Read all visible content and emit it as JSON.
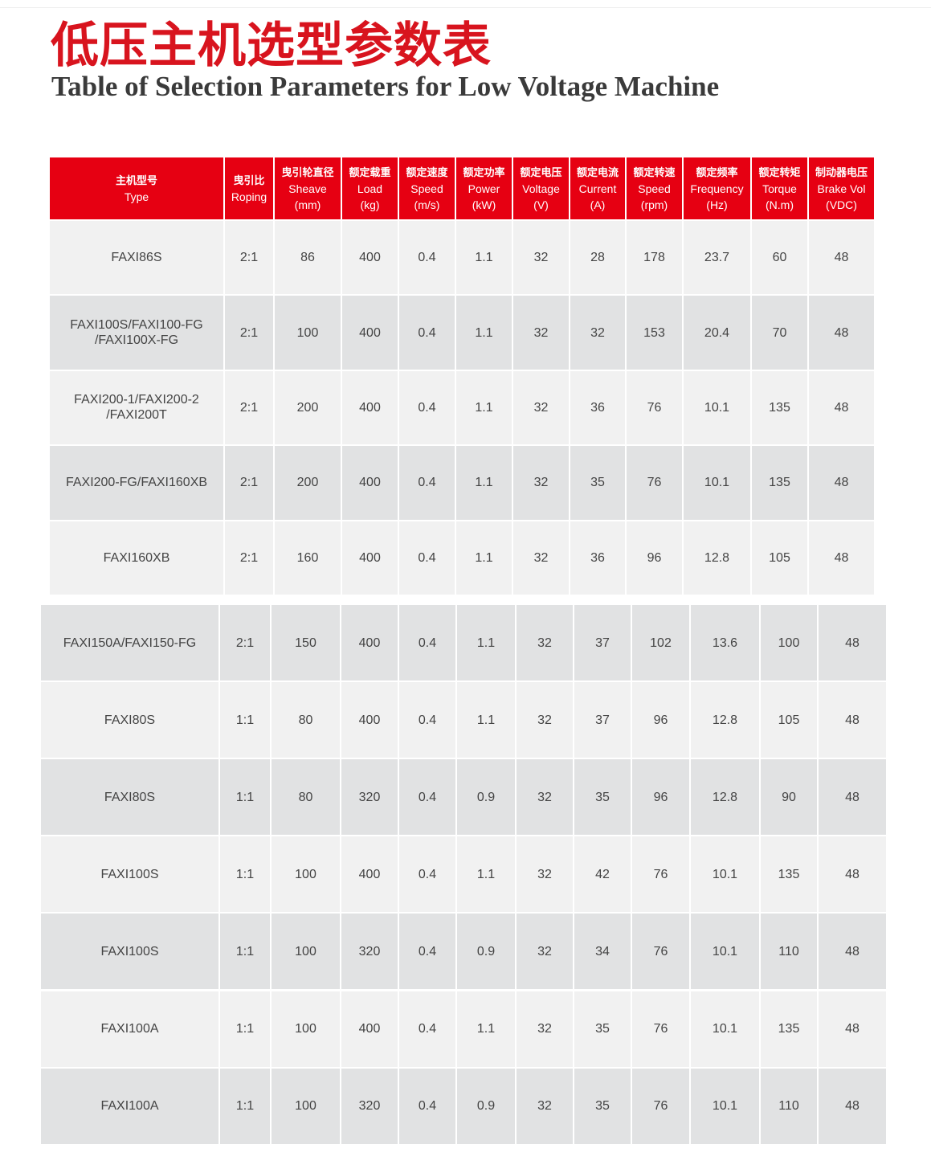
{
  "header": {
    "title": "低压主机选型参数表",
    "subtitle": "Table of Selection Parameters for Low Voltage Machine"
  },
  "table": {
    "columns": [
      {
        "zh": "主机型号",
        "en": "Type"
      },
      {
        "zh": "曳引比",
        "en": "Roping"
      },
      {
        "zh": "曳引轮直径",
        "en": "Sheave",
        "unit": "(mm)"
      },
      {
        "zh": "额定载重",
        "en": "Load",
        "unit": "(kg)"
      },
      {
        "zh": "额定速度",
        "en": "Speed",
        "unit": "(m/s)"
      },
      {
        "zh": "额定功率",
        "en": "Power",
        "unit": "(kW)"
      },
      {
        "zh": "额定电压",
        "en": "Voltage",
        "unit": "(V)"
      },
      {
        "zh": "额定电流",
        "en": "Current",
        "unit": "(A)"
      },
      {
        "zh": "额定转速",
        "en": "Speed",
        "unit": "(rpm)"
      },
      {
        "zh": "额定频率",
        "en": "Frequency",
        "unit": "(Hz)"
      },
      {
        "zh": "额定转矩",
        "en": "Torque",
        "unit": "(N.m)"
      },
      {
        "zh": "制动器电压",
        "en": "Brake Vol",
        "unit": "(VDC)"
      }
    ],
    "rows": [
      [
        "FAXI86S",
        "2:1",
        "86",
        "400",
        "0.4",
        "1.1",
        "32",
        "28",
        "178",
        "23.7",
        "60",
        "48"
      ],
      [
        "FAXI100S/FAXI100-FG /FAXI100X-FG",
        "2:1",
        "100",
        "400",
        "0.4",
        "1.1",
        "32",
        "32",
        "153",
        "20.4",
        "70",
        "48"
      ],
      [
        "FAXI200-1/FAXI200-2 /FAXI200T",
        "2:1",
        "200",
        "400",
        "0.4",
        "1.1",
        "32",
        "36",
        "76",
        "10.1",
        "135",
        "48"
      ],
      [
        "FAXI200-FG/FAXI160XB",
        "2:1",
        "200",
        "400",
        "0.4",
        "1.1",
        "32",
        "35",
        "76",
        "10.1",
        "135",
        "48"
      ],
      [
        "FAXI160XB",
        "2:1",
        "160",
        "400",
        "0.4",
        "1.1",
        "32",
        "36",
        "96",
        "12.8",
        "105",
        "48"
      ]
    ]
  },
  "table2": {
    "rows": [
      [
        "FAXI150A/FAXI150-FG",
        "2:1",
        "150",
        "400",
        "0.4",
        "1.1",
        "32",
        "37",
        "102",
        "13.6",
        "100",
        "48"
      ],
      [
        "FAXI80S",
        "1:1",
        "80",
        "400",
        "0.4",
        "1.1",
        "32",
        "37",
        "96",
        "12.8",
        "105",
        "48"
      ],
      [
        "FAXI80S",
        "1:1",
        "80",
        "320",
        "0.4",
        "0.9",
        "32",
        "35",
        "96",
        "12.8",
        "90",
        "48"
      ],
      [
        "FAXI100S",
        "1:1",
        "100",
        "400",
        "0.4",
        "1.1",
        "32",
        "42",
        "76",
        "10.1",
        "135",
        "48"
      ],
      [
        "FAXI100S",
        "1:1",
        "100",
        "320",
        "0.4",
        "0.9",
        "32",
        "34",
        "76",
        "10.1",
        "110",
        "48"
      ],
      [
        "FAXI100A",
        "1:1",
        "100",
        "400",
        "0.4",
        "1.1",
        "32",
        "35",
        "76",
        "10.1",
        "135",
        "48"
      ],
      [
        "FAXI100A",
        "1:1",
        "100",
        "320",
        "0.4",
        "0.9",
        "32",
        "35",
        "76",
        "10.1",
        "110",
        "48"
      ]
    ]
  }
}
